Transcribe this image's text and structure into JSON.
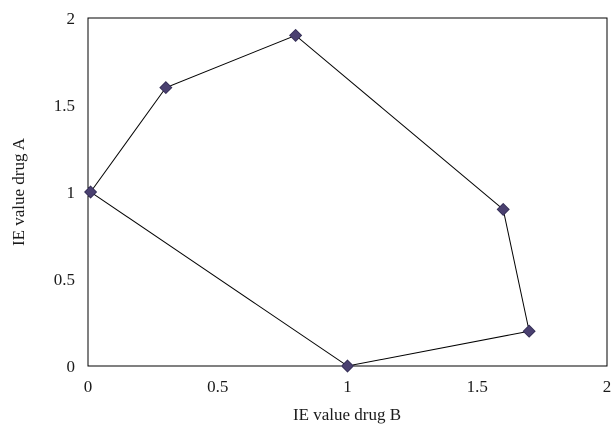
{
  "chart_data": {
    "type": "scatter",
    "title": "",
    "xlabel": "IE value drug B",
    "ylabel": "IE value drug A",
    "xlim": [
      0,
      2
    ],
    "ylim": [
      0,
      2
    ],
    "x_ticks": [
      "0",
      "0.5",
      "1",
      "1.5",
      "2"
    ],
    "y_ticks": [
      "0",
      "0.5",
      "1",
      "1.5",
      "2"
    ],
    "grid": false,
    "legend": "none",
    "connected": true,
    "closed": true,
    "marker": "diamond",
    "marker_color": "#4a4070",
    "line_color": "#000000",
    "series": [
      {
        "points": [
          {
            "x": 0.01,
            "y": 1.0
          },
          {
            "x": 0.3,
            "y": 1.6
          },
          {
            "x": 0.8,
            "y": 1.9
          },
          {
            "x": 1.6,
            "y": 0.9
          },
          {
            "x": 1.7,
            "y": 0.2
          },
          {
            "x": 1.0,
            "y": 0.0
          }
        ]
      }
    ]
  }
}
